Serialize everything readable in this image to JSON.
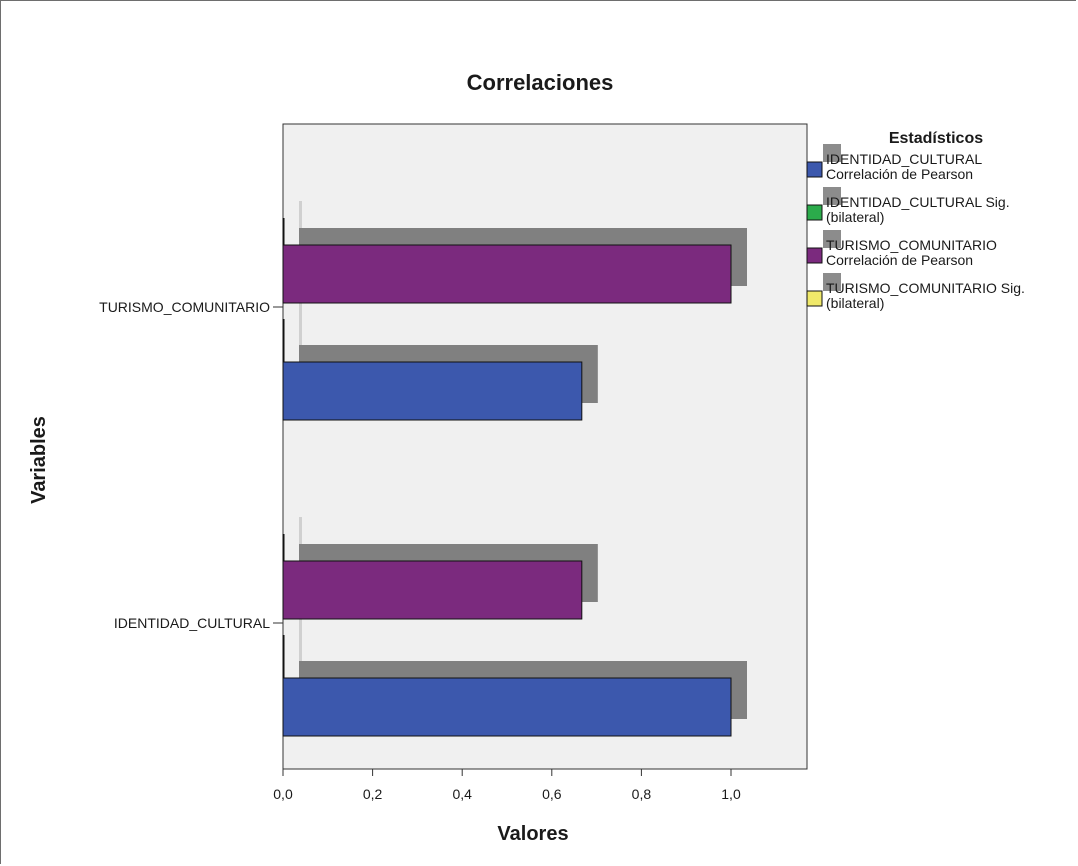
{
  "chart_data": {
    "type": "bar",
    "orientation": "horizontal",
    "title": "Correlaciones",
    "xlabel": "Valores",
    "ylabel": "Variables",
    "xlim": [
      0,
      1.17
    ],
    "xticks": [
      "0,0",
      "0,2",
      "0,4",
      "0,6",
      "0,8",
      "1,0"
    ],
    "xtick_values": [
      0,
      0.2,
      0.4,
      0.6,
      0.8,
      1.0
    ],
    "categories": [
      "TURISMO_COMUNITARIO",
      "IDENTIDAD_CULTURAL"
    ],
    "legend_title": "Estadísticos",
    "legend_position": "right",
    "series": [
      {
        "name": "IDENTIDAD_CULTURAL Correlación de Pearson",
        "name_lines": [
          "IDENTIDAD_CULTURAL",
          "Correlación de Pearson"
        ],
        "color": "#3c58ad",
        "values": [
          0.667,
          1.0
        ]
      },
      {
        "name": "IDENTIDAD_CULTURAL Sig. (bilateral)",
        "name_lines": [
          "IDENTIDAD_CULTURAL Sig.",
          "(bilateral)"
        ],
        "color": "#2bab4b",
        "values": [
          0.0,
          0.0
        ]
      },
      {
        "name": "TURISMO_COMUNITARIO Correlación de Pearson",
        "name_lines": [
          "TURISMO_COMUNITARIO",
          "Correlación de Pearson"
        ],
        "color": "#7b2a7e",
        "values": [
          1.0,
          0.667
        ]
      },
      {
        "name": "TURISMO_COMUNITARIO Sig. (bilateral)",
        "name_lines": [
          "TURISMO_COMUNITARIO Sig.",
          "(bilateral)"
        ],
        "color": "#f0e96a",
        "values": [
          0.0,
          0.0
        ]
      }
    ],
    "grid": false,
    "plot_background": "#f0f0f0",
    "shadow_color": "#808080"
  }
}
